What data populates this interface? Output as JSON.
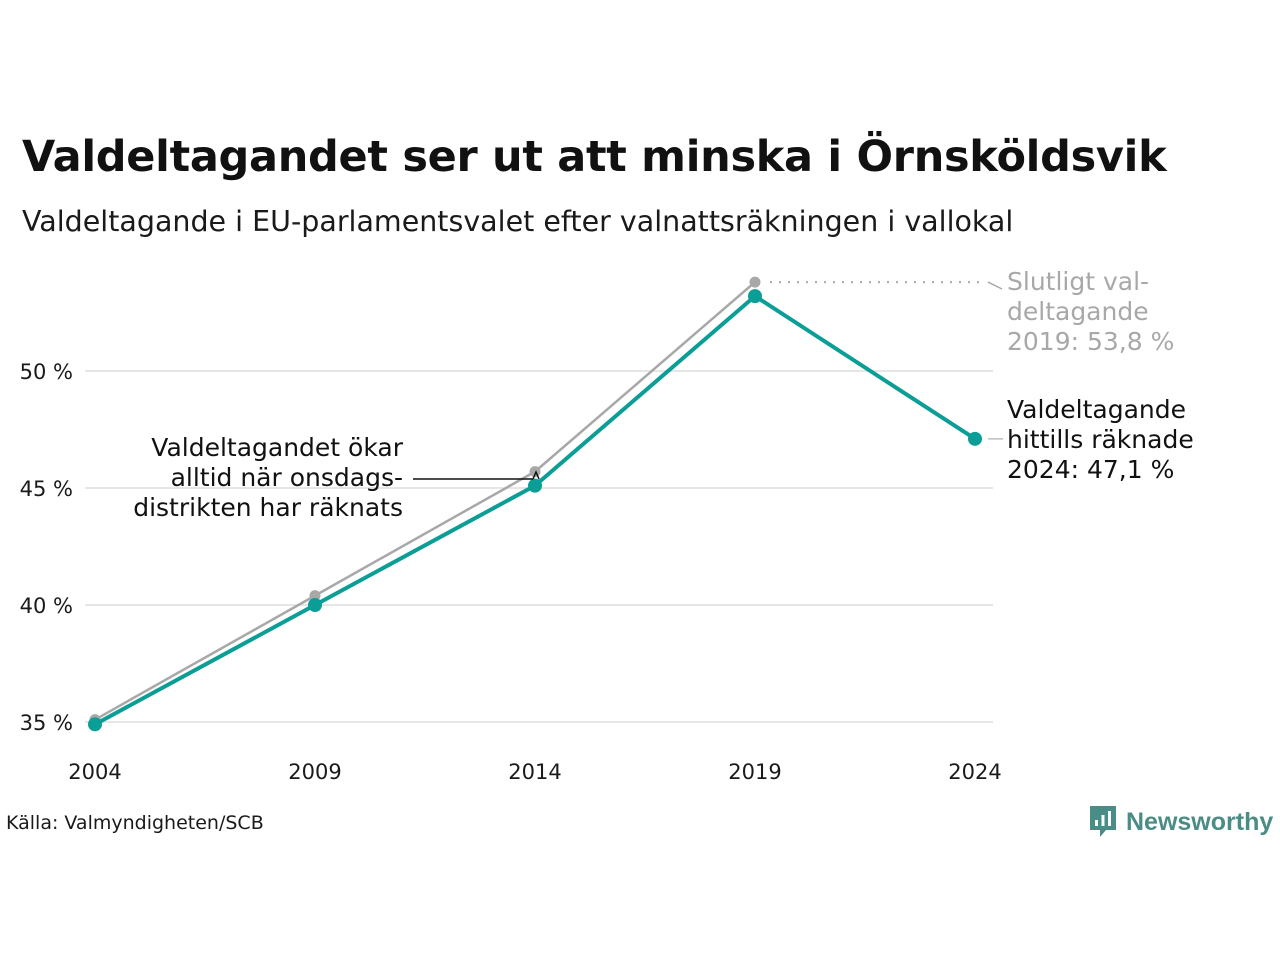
{
  "chart_data": {
    "type": "line",
    "title": "Valdeltagandet ser ut att minska i Örnsköldsvik",
    "subtitle": "Valdeltagande i EU-parlamentsvalet efter valnattsräkningen i vallokal",
    "x": [
      "2004",
      "2009",
      "2014",
      "2019",
      "2024"
    ],
    "ylim": [
      34,
      54
    ],
    "yticks": [
      35,
      40,
      45,
      50
    ],
    "ytick_labels": [
      "35 %",
      "40 %",
      "45 %",
      "50 %"
    ],
    "grid": true,
    "series": [
      {
        "values": [
          35.1,
          40.4,
          45.7,
          53.8,
          null
        ],
        "color": "#a8a8a8"
      },
      {
        "values": [
          34.9,
          40.0,
          45.1,
          53.2,
          47.1
        ],
        "color": "#0b9e96"
      }
    ],
    "annotations": {
      "final_2019": [
        "Slutligt val-",
        "deltagande",
        "2019: 53,8 %"
      ],
      "current_2024": [
        "Valdeltagande",
        "hittills räknade",
        "2024: 47,1 %"
      ],
      "wednesday": [
        "Valdeltagandet ökar",
        "alltid när onsdags-",
        "distrikten har räknats"
      ]
    }
  },
  "source": "Källa: Valmyndigheten/SCB",
  "brand": "Newsworthy",
  "colors": {
    "final": "#a8a8a8",
    "preliminary": "#0b9e96",
    "grid": "#e6e6e6",
    "brand": "#4a8c86"
  }
}
